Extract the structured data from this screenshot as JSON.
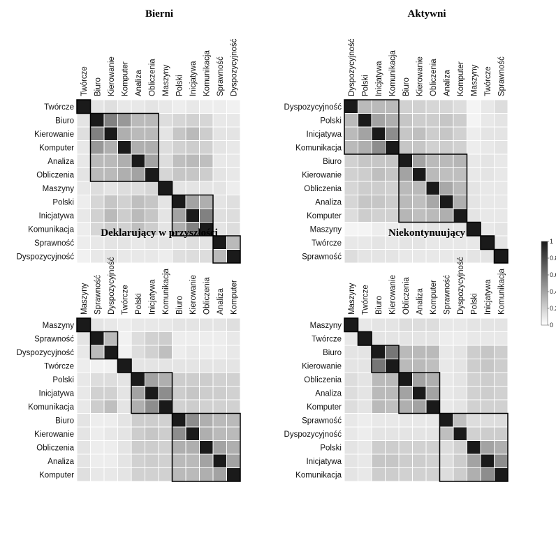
{
  "colorbar": {
    "ticks": [
      "1",
      "0.8",
      "0.6",
      "0.4",
      "0.2",
      "0"
    ],
    "low_color": "#ffffff",
    "high_color": "#1a1a1a"
  },
  "chart_data": [
    {
      "type": "heatmap",
      "title": "Bierni",
      "labels": [
        "Twórcze",
        "Biuro",
        "Kierowanie",
        "Komputer",
        "Analiza",
        "Obliczenia",
        "Maszyny",
        "Polski",
        "Inicjatywa",
        "Komunikacja",
        "Sprawność",
        "Dyspozycyjność"
      ],
      "clusters": [
        [
          0,
          0
        ],
        [
          1,
          5
        ],
        [
          6,
          6
        ],
        [
          7,
          9
        ],
        [
          10,
          11
        ]
      ],
      "value_range": [
        0,
        1
      ],
      "matrix": [
        [
          1.0,
          0.12,
          0.14,
          0.1,
          0.1,
          0.12,
          0.1,
          0.08,
          0.1,
          0.08,
          0.08,
          0.06
        ],
        [
          0.12,
          1.0,
          0.55,
          0.45,
          0.3,
          0.3,
          0.15,
          0.18,
          0.2,
          0.18,
          0.1,
          0.1
        ],
        [
          0.14,
          0.55,
          1.0,
          0.35,
          0.3,
          0.3,
          0.12,
          0.25,
          0.3,
          0.22,
          0.12,
          0.12
        ],
        [
          0.1,
          0.45,
          0.35,
          1.0,
          0.35,
          0.35,
          0.15,
          0.2,
          0.22,
          0.2,
          0.12,
          0.1
        ],
        [
          0.1,
          0.3,
          0.3,
          0.35,
          1.0,
          0.4,
          0.15,
          0.28,
          0.3,
          0.28,
          0.1,
          0.1
        ],
        [
          0.12,
          0.3,
          0.3,
          0.35,
          0.4,
          1.0,
          0.18,
          0.25,
          0.25,
          0.22,
          0.12,
          0.1
        ],
        [
          0.1,
          0.15,
          0.12,
          0.15,
          0.15,
          0.18,
          1.0,
          0.12,
          0.12,
          0.12,
          0.12,
          0.08
        ],
        [
          0.08,
          0.18,
          0.25,
          0.2,
          0.28,
          0.25,
          0.12,
          1.0,
          0.4,
          0.35,
          0.12,
          0.14
        ],
        [
          0.1,
          0.2,
          0.3,
          0.22,
          0.3,
          0.25,
          0.12,
          0.4,
          1.0,
          0.55,
          0.14,
          0.15
        ],
        [
          0.08,
          0.18,
          0.22,
          0.2,
          0.28,
          0.22,
          0.12,
          0.35,
          0.55,
          1.0,
          0.12,
          0.15
        ],
        [
          0.08,
          0.1,
          0.12,
          0.12,
          0.1,
          0.12,
          0.12,
          0.12,
          0.14,
          0.12,
          1.0,
          0.3
        ],
        [
          0.06,
          0.1,
          0.12,
          0.1,
          0.1,
          0.1,
          0.08,
          0.14,
          0.15,
          0.15,
          0.3,
          1.0
        ]
      ]
    },
    {
      "type": "heatmap",
      "title": "Aktywni",
      "labels": [
        "Dyspozycyjność",
        "Polski",
        "Inicjatywa",
        "Komunikacja",
        "Biuro",
        "Kierowanie",
        "Obliczenia",
        "Analiza",
        "Komputer",
        "Maszyny",
        "Twórcze",
        "Sprawność"
      ],
      "clusters": [
        [
          0,
          3
        ],
        [
          4,
          8
        ],
        [
          9,
          9
        ],
        [
          10,
          10
        ],
        [
          11,
          11
        ]
      ],
      "value_range": [
        0,
        1
      ],
      "matrix": [
        [
          1.0,
          0.3,
          0.3,
          0.3,
          0.2,
          0.2,
          0.18,
          0.18,
          0.15,
          0.05,
          0.1,
          0.15
        ],
        [
          0.3,
          1.0,
          0.4,
          0.35,
          0.25,
          0.22,
          0.22,
          0.25,
          0.22,
          0.05,
          0.1,
          0.12
        ],
        [
          0.3,
          0.4,
          1.0,
          0.5,
          0.25,
          0.28,
          0.22,
          0.25,
          0.2,
          0.08,
          0.12,
          0.12
        ],
        [
          0.3,
          0.35,
          0.5,
          1.0,
          0.25,
          0.25,
          0.2,
          0.22,
          0.2,
          0.08,
          0.1,
          0.12
        ],
        [
          0.2,
          0.25,
          0.25,
          0.25,
          1.0,
          0.4,
          0.3,
          0.3,
          0.32,
          0.1,
          0.12,
          0.1
        ],
        [
          0.2,
          0.22,
          0.28,
          0.25,
          0.4,
          1.0,
          0.3,
          0.28,
          0.28,
          0.1,
          0.12,
          0.1
        ],
        [
          0.18,
          0.22,
          0.22,
          0.2,
          0.3,
          0.3,
          1.0,
          0.38,
          0.3,
          0.12,
          0.1,
          0.1
        ],
        [
          0.18,
          0.25,
          0.25,
          0.22,
          0.3,
          0.28,
          0.38,
          1.0,
          0.35,
          0.12,
          0.1,
          0.1
        ],
        [
          0.15,
          0.22,
          0.2,
          0.2,
          0.32,
          0.28,
          0.3,
          0.35,
          1.0,
          0.12,
          0.1,
          0.1
        ],
        [
          0.05,
          0.05,
          0.08,
          0.08,
          0.1,
          0.1,
          0.12,
          0.12,
          0.12,
          1.0,
          0.1,
          0.12
        ],
        [
          0.1,
          0.1,
          0.12,
          0.1,
          0.12,
          0.12,
          0.1,
          0.1,
          0.1,
          0.1,
          1.0,
          0.12
        ],
        [
          0.15,
          0.12,
          0.12,
          0.12,
          0.1,
          0.1,
          0.1,
          0.1,
          0.1,
          0.12,
          0.12,
          1.0
        ]
      ]
    },
    {
      "type": "heatmap",
      "title": "Deklarujący w przyszłości",
      "labels": [
        "Maszyny",
        "Sprawność",
        "Dyspozycyjność",
        "Twórcze",
        "Polski",
        "Inicjatywa",
        "Komunikacja",
        "Biuro",
        "Kierowanie",
        "Obliczenia",
        "Analiza",
        "Komputer"
      ],
      "clusters": [
        [
          0,
          0
        ],
        [
          1,
          2
        ],
        [
          3,
          3
        ],
        [
          4,
          6
        ],
        [
          7,
          11
        ]
      ],
      "value_range": [
        0,
        1
      ],
      "matrix": [
        [
          1.0,
          0.12,
          0.1,
          0.08,
          0.1,
          0.1,
          0.1,
          0.12,
          0.12,
          0.12,
          0.12,
          0.14
        ],
        [
          0.12,
          1.0,
          0.3,
          0.06,
          0.15,
          0.2,
          0.22,
          0.08,
          0.08,
          0.08,
          0.08,
          0.1
        ],
        [
          0.1,
          0.3,
          1.0,
          0.06,
          0.15,
          0.2,
          0.28,
          0.08,
          0.1,
          0.08,
          0.08,
          0.1
        ],
        [
          0.08,
          0.06,
          0.06,
          1.0,
          0.12,
          0.12,
          0.12,
          0.12,
          0.12,
          0.12,
          0.12,
          0.12
        ],
        [
          0.1,
          0.15,
          0.15,
          0.12,
          1.0,
          0.4,
          0.35,
          0.22,
          0.22,
          0.22,
          0.2,
          0.2
        ],
        [
          0.1,
          0.2,
          0.2,
          0.12,
          0.4,
          1.0,
          0.5,
          0.22,
          0.25,
          0.22,
          0.22,
          0.2
        ],
        [
          0.1,
          0.22,
          0.28,
          0.12,
          0.35,
          0.5,
          1.0,
          0.2,
          0.22,
          0.2,
          0.2,
          0.2
        ],
        [
          0.12,
          0.08,
          0.08,
          0.12,
          0.22,
          0.22,
          0.2,
          1.0,
          0.5,
          0.35,
          0.3,
          0.3
        ],
        [
          0.12,
          0.08,
          0.1,
          0.12,
          0.22,
          0.25,
          0.22,
          0.5,
          1.0,
          0.35,
          0.3,
          0.3
        ],
        [
          0.12,
          0.08,
          0.08,
          0.12,
          0.22,
          0.22,
          0.2,
          0.35,
          0.35,
          1.0,
          0.4,
          0.35
        ],
        [
          0.12,
          0.08,
          0.08,
          0.12,
          0.2,
          0.22,
          0.2,
          0.3,
          0.3,
          0.4,
          1.0,
          0.4
        ],
        [
          0.14,
          0.1,
          0.1,
          0.12,
          0.2,
          0.2,
          0.2,
          0.3,
          0.3,
          0.35,
          0.4,
          1.0
        ]
      ]
    },
    {
      "type": "heatmap",
      "title": "Niekontynuujący",
      "labels": [
        "Maszyny",
        "Twórcze",
        "Biuro",
        "Kierowanie",
        "Obliczenia",
        "Analiza",
        "Komputer",
        "Sprawność",
        "Dyspozycyjność",
        "Polski",
        "Inicjatywa",
        "Komunikacja"
      ],
      "clusters": [
        [
          0,
          0
        ],
        [
          1,
          1
        ],
        [
          2,
          3
        ],
        [
          4,
          6
        ],
        [
          7,
          11
        ]
      ],
      "value_range": [
        0,
        1
      ],
      "matrix": [
        [
          1.0,
          0.1,
          0.12,
          0.12,
          0.15,
          0.15,
          0.15,
          0.1,
          0.1,
          0.12,
          0.12,
          0.12
        ],
        [
          0.1,
          1.0,
          0.12,
          0.12,
          0.12,
          0.12,
          0.12,
          0.08,
          0.08,
          0.1,
          0.1,
          0.1
        ],
        [
          0.12,
          0.12,
          1.0,
          0.6,
          0.3,
          0.3,
          0.3,
          0.1,
          0.12,
          0.22,
          0.25,
          0.22
        ],
        [
          0.12,
          0.12,
          0.6,
          1.0,
          0.3,
          0.3,
          0.28,
          0.1,
          0.12,
          0.22,
          0.25,
          0.22
        ],
        [
          0.15,
          0.12,
          0.3,
          0.3,
          1.0,
          0.4,
          0.35,
          0.1,
          0.12,
          0.2,
          0.22,
          0.2
        ],
        [
          0.15,
          0.12,
          0.3,
          0.3,
          0.4,
          1.0,
          0.4,
          0.1,
          0.12,
          0.2,
          0.22,
          0.2
        ],
        [
          0.15,
          0.12,
          0.3,
          0.28,
          0.35,
          0.4,
          1.0,
          0.1,
          0.12,
          0.2,
          0.2,
          0.2
        ],
        [
          0.1,
          0.08,
          0.1,
          0.1,
          0.1,
          0.1,
          0.1,
          1.0,
          0.28,
          0.15,
          0.15,
          0.15
        ],
        [
          0.1,
          0.08,
          0.12,
          0.12,
          0.12,
          0.12,
          0.12,
          0.28,
          1.0,
          0.2,
          0.22,
          0.22
        ],
        [
          0.12,
          0.1,
          0.22,
          0.22,
          0.2,
          0.2,
          0.2,
          0.15,
          0.2,
          1.0,
          0.4,
          0.35
        ],
        [
          0.12,
          0.1,
          0.25,
          0.25,
          0.22,
          0.22,
          0.2,
          0.15,
          0.22,
          0.4,
          1.0,
          0.5
        ],
        [
          0.12,
          0.1,
          0.22,
          0.22,
          0.2,
          0.2,
          0.2,
          0.15,
          0.22,
          0.35,
          0.5,
          1.0
        ]
      ]
    }
  ]
}
